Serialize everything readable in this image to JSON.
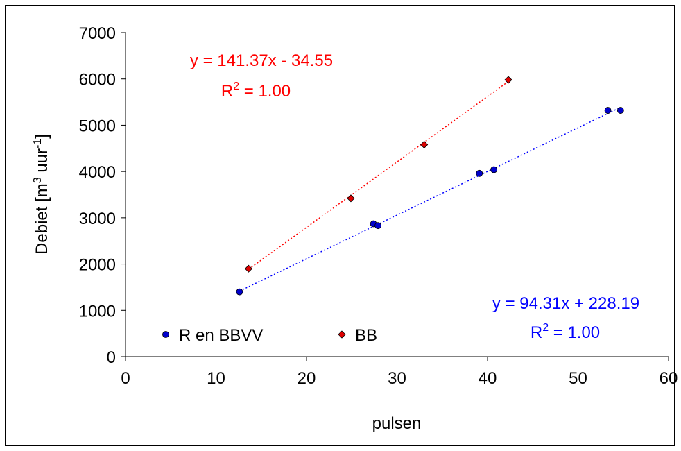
{
  "chart_data": {
    "type": "scatter",
    "xlabel": "pulsen",
    "ylabel": {
      "prefix": "Debiet [m",
      "sup1": "3",
      "middle": " uur",
      "sup2": "-1",
      "suffix": "]"
    },
    "xlim": [
      0,
      60
    ],
    "ylim": [
      0,
      7000
    ],
    "x_ticks": [
      "0",
      "10",
      "20",
      "30",
      "40",
      "50",
      "60"
    ],
    "y_ticks": [
      "0",
      "1000",
      "2000",
      "3000",
      "4000",
      "5000",
      "6000",
      "7000"
    ],
    "grid": false,
    "legend_placement": "bottom-left",
    "series": [
      {
        "name": "R en BBVV",
        "marker": "circle",
        "color": "#0000cc",
        "trend_color": "#0000ff",
        "points": [
          [
            12.6,
            1400
          ],
          [
            27.4,
            2870
          ],
          [
            27.9,
            2830
          ],
          [
            39.1,
            3960
          ],
          [
            40.7,
            4040
          ],
          [
            53.3,
            5320
          ],
          [
            54.7,
            5320
          ]
        ],
        "trendline": {
          "slope": 94.31,
          "intercept": 228.19,
          "x_range": [
            12.6,
            54.7
          ]
        },
        "equation": "y = 94.31x + 228.19",
        "r2": {
          "prefix": "R",
          "sup": "2",
          "suffix": " = 1.00"
        }
      },
      {
        "name": "BB",
        "marker": "diamond",
        "color": "#dd0000",
        "trend_color": "#ff0000",
        "points": [
          [
            13.6,
            1900
          ],
          [
            24.9,
            3420
          ],
          [
            33.0,
            4580
          ],
          [
            42.3,
            5980
          ]
        ],
        "trendline": {
          "slope": 141.37,
          "intercept": -34.55,
          "x_range": [
            13.6,
            42.3
          ]
        },
        "equation": "y = 141.37x - 34.55",
        "r2": {
          "prefix": "R",
          "sup": "2",
          "suffix": " = 1.00"
        }
      }
    ]
  }
}
